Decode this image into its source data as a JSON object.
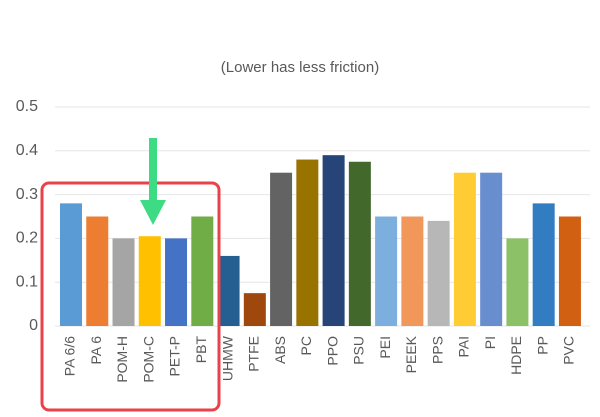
{
  "chart_data": {
    "type": "bar",
    "subtitle": "(Lower has less friction)",
    "categories": [
      "PA 6/6",
      "PA 6",
      "POM-H",
      "POM-C",
      "PET-P",
      "PBT",
      "UHMW",
      "PTFE",
      "ABS",
      "PC",
      "PPO",
      "PSU",
      "PEI",
      "PEEK",
      "PPS",
      "PAI",
      "PI",
      "HDPE",
      "PP",
      "PVC"
    ],
    "values": [
      0.28,
      0.25,
      0.2,
      0.205,
      0.2,
      0.25,
      0.16,
      0.075,
      0.35,
      0.38,
      0.39,
      0.375,
      0.25,
      0.25,
      0.24,
      0.35,
      0.35,
      0.2,
      0.28,
      0.25
    ],
    "colors": [
      "#5b9bd5",
      "#ed7d31",
      "#a5a5a5",
      "#ffc000",
      "#4472c4",
      "#70ad47",
      "#255e91",
      "#9e480e",
      "#636363",
      "#997300",
      "#264478",
      "#43682b",
      "#7cafdd",
      "#f1975a",
      "#b7b7b7",
      "#ffcd33",
      "#698ed0",
      "#8cc168",
      "#327dc2",
      "#d26012"
    ],
    "ylim": [
      0,
      0.5
    ],
    "yticks": [
      0,
      0.1,
      0.2,
      0.3,
      0.4,
      0.5
    ],
    "grid": true
  }
}
